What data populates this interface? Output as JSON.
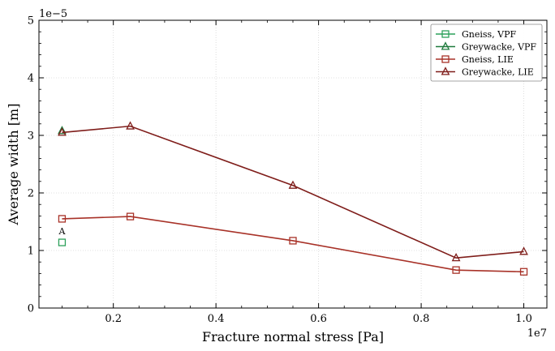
{
  "chart_data": {
    "type": "line",
    "title": "",
    "xlabel": "Fracture normal stress [Pa]",
    "ylabel": "Average width [m]",
    "x_offset_label": "1e7",
    "y_offset_label": "1e−5",
    "xlim": [
      550000,
      10450000
    ],
    "ylim": [
      0,
      5e-05
    ],
    "x_ticks": [
      2000000,
      4000000,
      6000000,
      8000000,
      10000000
    ],
    "x_tick_labels": [
      "0.2",
      "0.4",
      "0.6",
      "0.8",
      "1.0"
    ],
    "y_ticks": [
      0,
      1e-05,
      2e-05,
      3e-05,
      4e-05,
      5e-05
    ],
    "y_tick_labels": [
      "0",
      "1",
      "2",
      "3",
      "4",
      "5"
    ],
    "grid": true,
    "legend_position": "top-right",
    "series": [
      {
        "name": "Gneiss, VPF",
        "color": "#2ca05a",
        "marker": "square",
        "x": [
          1000000
        ],
        "y": [
          1.14e-05
        ]
      },
      {
        "name": "Greywacke, VPF",
        "color": "#1e7a3c",
        "marker": "triangle",
        "x": [
          1000000
        ],
        "y": [
          3.08e-05
        ]
      },
      {
        "name": "Gneiss, LIE",
        "color": "#a83228",
        "marker": "square",
        "x": [
          1000000,
          2330000,
          5500000,
          8680000,
          10000000
        ],
        "y": [
          1.55e-05,
          1.59e-05,
          1.17e-05,
          6.6e-06,
          6.3e-06
        ]
      },
      {
        "name": "Greywacke, LIE",
        "color": "#7f1d1a",
        "marker": "triangle",
        "x": [
          1000000,
          2330000,
          5500000,
          8680000,
          10000000
        ],
        "y": [
          3.05e-05,
          3.16e-05,
          2.13e-05,
          8.7e-06,
          9.8e-06
        ]
      }
    ],
    "annotations": [
      {
        "text": "A",
        "x": 1000000,
        "y": 1.14e-05
      }
    ]
  }
}
